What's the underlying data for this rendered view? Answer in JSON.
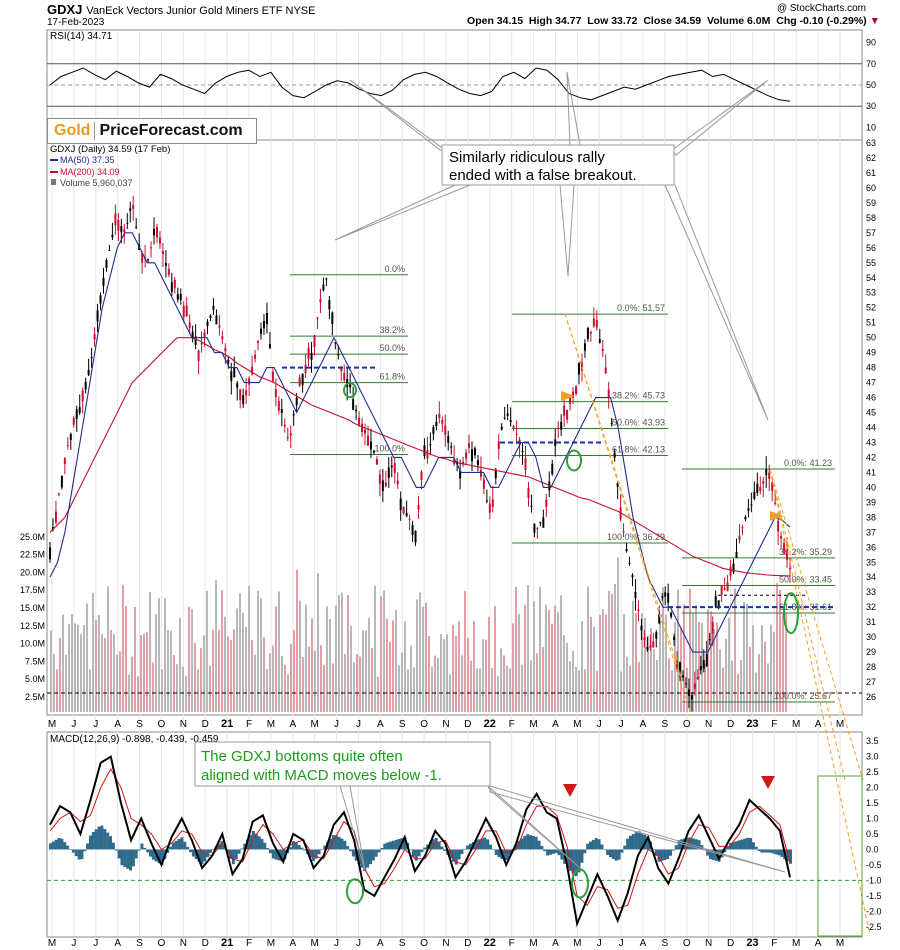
{
  "header": {
    "ticker": "GDXJ",
    "name": "VanEck Vectors Junior Gold Miners ETF NYSE",
    "date": "17-Feb-2023",
    "copyright": "@ StockCharts.com",
    "open": "Open 34.15",
    "high": "High 34.77",
    "low": "Low 33.72",
    "close": "Close 34.59",
    "volume": "Volume 6.0M",
    "chg": "Chg -0.10 (-0.29%)",
    "colors": {
      "down": "#b00020"
    }
  },
  "logo": {
    "gold": "Gold",
    "rest": "PriceForecast.com",
    "colors": {
      "gold": "#e69a1d"
    }
  },
  "chart_data": [
    {
      "type": "line",
      "title": "RSI(14) 34.71",
      "series": [
        {
          "name": "RSI(14)",
          "values": [
            50,
            58,
            62,
            66,
            60,
            55,
            63,
            58,
            52,
            48,
            60,
            56,
            50,
            46,
            42,
            52,
            58,
            62,
            64,
            58,
            62,
            48,
            40,
            38,
            44,
            50,
            54,
            52,
            46,
            42,
            40,
            45,
            55,
            60,
            62,
            58,
            52,
            46,
            42,
            40,
            44,
            58,
            62,
            56,
            66,
            64,
            55,
            42,
            38,
            36,
            40,
            44,
            48,
            46,
            50,
            54,
            58,
            60,
            62,
            64,
            58,
            60,
            55,
            50,
            45,
            40,
            36,
            34.71
          ]
        }
      ],
      "ylim": [
        0,
        100
      ],
      "ticks": [
        "10",
        "30",
        "50",
        "70",
        "90"
      ],
      "reference_lines": [
        30,
        50,
        70
      ]
    },
    {
      "type": "line",
      "title": "GDXJ (Daily) 34.59 (17 Feb)",
      "legend": [
        "MA(50) 37.35",
        "MA(200) 34.09",
        "Volume 5,960,037"
      ],
      "series": [
        {
          "name": "GDXJ",
          "values": [
            36,
            39,
            42,
            44,
            45,
            47,
            50,
            53,
            56,
            58,
            57,
            59,
            56,
            55,
            57,
            56,
            54,
            53,
            52,
            50,
            49,
            51,
            52,
            50,
            48,
            47,
            46,
            48,
            50,
            51,
            47,
            45,
            43,
            46,
            48,
            49,
            52,
            54,
            50,
            48,
            47,
            45,
            44,
            43,
            41,
            40,
            42,
            39,
            38,
            37,
            42,
            43,
            45,
            44,
            42,
            41,
            43,
            42,
            40,
            38,
            43,
            45,
            44,
            43,
            40,
            37,
            38,
            41,
            44,
            45,
            46,
            48,
            50,
            51,
            49,
            45,
            40,
            36,
            34,
            31,
            29,
            30,
            33,
            32,
            28,
            27,
            26,
            28,
            29,
            32,
            33,
            34,
            36,
            38,
            39,
            40,
            41,
            39,
            36,
            34.6
          ]
        },
        {
          "name": "MA(50)",
          "values": [
            34,
            35,
            37,
            40,
            43,
            46,
            49,
            52,
            54,
            56,
            57,
            57,
            56,
            55,
            55,
            54,
            53,
            52,
            51,
            50,
            50,
            50,
            49,
            49,
            48,
            48,
            47,
            47,
            47,
            48,
            48,
            47,
            46,
            45,
            46,
            47,
            48,
            49,
            50,
            49,
            48,
            47,
            46,
            45,
            44,
            43,
            42,
            42,
            41,
            40,
            40,
            41,
            42,
            42,
            42,
            41,
            41,
            41,
            41,
            40,
            40,
            41,
            42,
            43,
            43,
            42,
            40,
            40,
            41,
            42,
            43,
            44,
            45,
            46,
            46,
            46,
            44,
            41,
            38,
            36,
            34,
            33,
            32,
            32,
            31,
            30,
            29,
            29,
            29,
            30,
            31,
            32,
            33,
            34,
            35,
            36,
            37,
            38,
            37.8,
            37.35
          ]
        },
        {
          "name": "MA(200)",
          "values": [
            37,
            37.5,
            38,
            39,
            40,
            41,
            42,
            43,
            44,
            45,
            46,
            47,
            47.5,
            48,
            48.5,
            49,
            49.5,
            50,
            50,
            50,
            49.8,
            49.5,
            49.2,
            49,
            48.7,
            48.3,
            48,
            47.7,
            47.4,
            47.2,
            47,
            46.7,
            46.4,
            46.1,
            45.8,
            45.5,
            45.3,
            45.1,
            44.9,
            44.7,
            44.5,
            44.2,
            44,
            43.8,
            43.6,
            43.4,
            43.2,
            43,
            42.8,
            42.6,
            42.4,
            42.2,
            42,
            41.9,
            41.7,
            41.6,
            41.5,
            41.4,
            41.3,
            41.2,
            41.1,
            41,
            40.9,
            40.8,
            40.7,
            40.5,
            40.3,
            40.1,
            39.9,
            39.7,
            39.5,
            39.3,
            39.2,
            39,
            38.8,
            38.6,
            38.4,
            38.1,
            37.8,
            37.5,
            37.2,
            36.9,
            36.6,
            36.3,
            36,
            35.7,
            35.4,
            35.2,
            35,
            34.8,
            34.6,
            34.5,
            34.4,
            34.3,
            34.25,
            34.2,
            34.15,
            34.12,
            34.1,
            34.09
          ]
        }
      ],
      "ylim": [
        25,
        63
      ],
      "right_ticks": [
        "26",
        "27",
        "28",
        "29",
        "30",
        "31",
        "32",
        "33",
        "34",
        "35",
        "36",
        "37",
        "38",
        "39",
        "40",
        "41",
        "42",
        "43",
        "44",
        "45",
        "46",
        "47",
        "48",
        "49",
        "50",
        "51",
        "52",
        "53",
        "54",
        "55",
        "56",
        "57",
        "58",
        "59",
        "60",
        "61",
        "62",
        "63"
      ],
      "volume_ticks": [
        "2.5M",
        "5.0M",
        "7.5M",
        "10.0M",
        "12.5M",
        "15.0M",
        "17.5M",
        "20.0M",
        "22.5M",
        "25.0M"
      ],
      "fib_sets": [
        {
          "levels": [
            {
              "price": 54.2,
              "label": "0.0%"
            },
            {
              "price": 50.1,
              "label": "38.2%"
            },
            {
              "price": 48.9,
              "label": "50.0%"
            },
            {
              "price": 47.0,
              "label": "61.8%"
            },
            {
              "price": 42.2,
              "label": "100.0%"
            }
          ]
        },
        {
          "levels": [
            {
              "price": 51.57,
              "label": "0.0%: 51.57"
            },
            {
              "price": 45.73,
              "label": "38.2%: 45.73"
            },
            {
              "price": 43.93,
              "label": "50.0%: 43.93"
            },
            {
              "price": 42.13,
              "label": "61.8%: 42.13"
            },
            {
              "price": 36.29,
              "label": "100.0%: 36.29"
            }
          ]
        },
        {
          "levels": [
            {
              "price": 41.23,
              "label": "0.0%: 41.23"
            },
            {
              "price": 35.29,
              "label": "38.2%: 35.29"
            },
            {
              "price": 33.45,
              "label": "50.0%: 33.45"
            },
            {
              "price": 31.61,
              "label": "61.8%: 31.61"
            },
            {
              "price": 25.67,
              "label": "100.0%: 25.67"
            }
          ]
        }
      ],
      "annotations": [
        "Similarly ridiculous rally",
        "ended with a false breakout."
      ]
    },
    {
      "type": "line",
      "title": "MACD(12,26,9) -0.898, -0.439, -0.459",
      "series": [
        {
          "name": "MACD",
          "values": [
            0.8,
            1.4,
            1.2,
            0.5,
            1.6,
            2.8,
            3.0,
            1.5,
            0.3,
            1.0,
            0.2,
            -0.5,
            0.4,
            1.0,
            0.3,
            -0.6,
            -0.2,
            0.5,
            -0.8,
            -0.3,
            0.9,
            1.1,
            0.2,
            -0.4,
            0.5,
            0.3,
            -0.6,
            -0.2,
            0.8,
            1.2,
            0.3,
            -1.3,
            -1.5,
            -0.9,
            -0.3,
            0.4,
            -0.7,
            -0.2,
            0.6,
            0.2,
            -0.9,
            -0.4,
            0.3,
            1.0,
            0.4,
            -0.5,
            0.2,
            1.3,
            1.8,
            1.2,
            1.0,
            -0.5,
            -2.4,
            -1.6,
            -0.8,
            -1.5,
            -2.3,
            -1.4,
            -0.2,
            0.4,
            -0.6,
            -1.1,
            -0.3,
            0.6,
            1.1,
            0.4,
            -0.3,
            0.3,
            0.8,
            1.6,
            1.3,
            1.0,
            0.6,
            -0.9
          ]
        },
        {
          "name": "Signal",
          "values": [
            0.6,
            1.0,
            1.2,
            0.9,
            1.1,
            2.0,
            2.6,
            2.0,
            1.0,
            0.8,
            0.5,
            0.0,
            0.2,
            0.6,
            0.5,
            -0.1,
            -0.2,
            0.2,
            -0.3,
            -0.4,
            0.3,
            0.8,
            0.5,
            0.0,
            0.2,
            0.3,
            -0.2,
            -0.3,
            0.3,
            0.9,
            0.6,
            -0.6,
            -1.2,
            -1.1,
            -0.6,
            0.0,
            -0.3,
            -0.3,
            0.2,
            0.3,
            -0.4,
            -0.5,
            0.0,
            0.6,
            0.6,
            -0.1,
            0.0,
            0.8,
            1.4,
            1.4,
            1.1,
            0.1,
            -1.5,
            -1.8,
            -1.2,
            -1.3,
            -1.9,
            -1.8,
            -0.8,
            0.0,
            -0.2,
            -0.8,
            -0.6,
            0.2,
            0.8,
            0.7,
            0.1,
            0.1,
            0.5,
            1.2,
            1.4,
            1.1,
            0.8,
            -0.439
          ]
        }
      ],
      "ylim": [
        -2.7,
        3.7
      ],
      "ticks": [
        "3.5",
        "3.0",
        "2.5",
        "2.0",
        "1.5",
        "1.0",
        "0.5",
        "0.0",
        "-0.5",
        "-1.0",
        "-1.5",
        "-2.0",
        "-2.5"
      ],
      "annotations": [
        "The GDXJ bottoms quite often",
        "aligned with MACD moves below -1."
      ]
    }
  ],
  "x_axis_labels": [
    "M",
    "J",
    "J",
    "A",
    "S",
    "O",
    "N",
    "D",
    "21",
    "F",
    "M",
    "A",
    "M",
    "J",
    "J",
    "A",
    "S",
    "O",
    "N",
    "D",
    "22",
    "F",
    "M",
    "A",
    "M",
    "J",
    "J",
    "A",
    "S",
    "O",
    "N",
    "D",
    "23",
    "F",
    "M",
    "A",
    "M"
  ],
  "colors": {
    "price_up": "#000000",
    "price_down": "#c8102e",
    "ma50": "#1f2f8f",
    "ma200": "#c8102e",
    "volume": "#b8b8b8",
    "volume_red": "#e1a0a8",
    "fib": "#2e7d32",
    "ellipse": "#2e9e3a",
    "orange": "#f0a020",
    "macd_hist": "#2f6b8c",
    "macd_signal": "#d01818",
    "annotation_green": "#1a9e1a"
  }
}
